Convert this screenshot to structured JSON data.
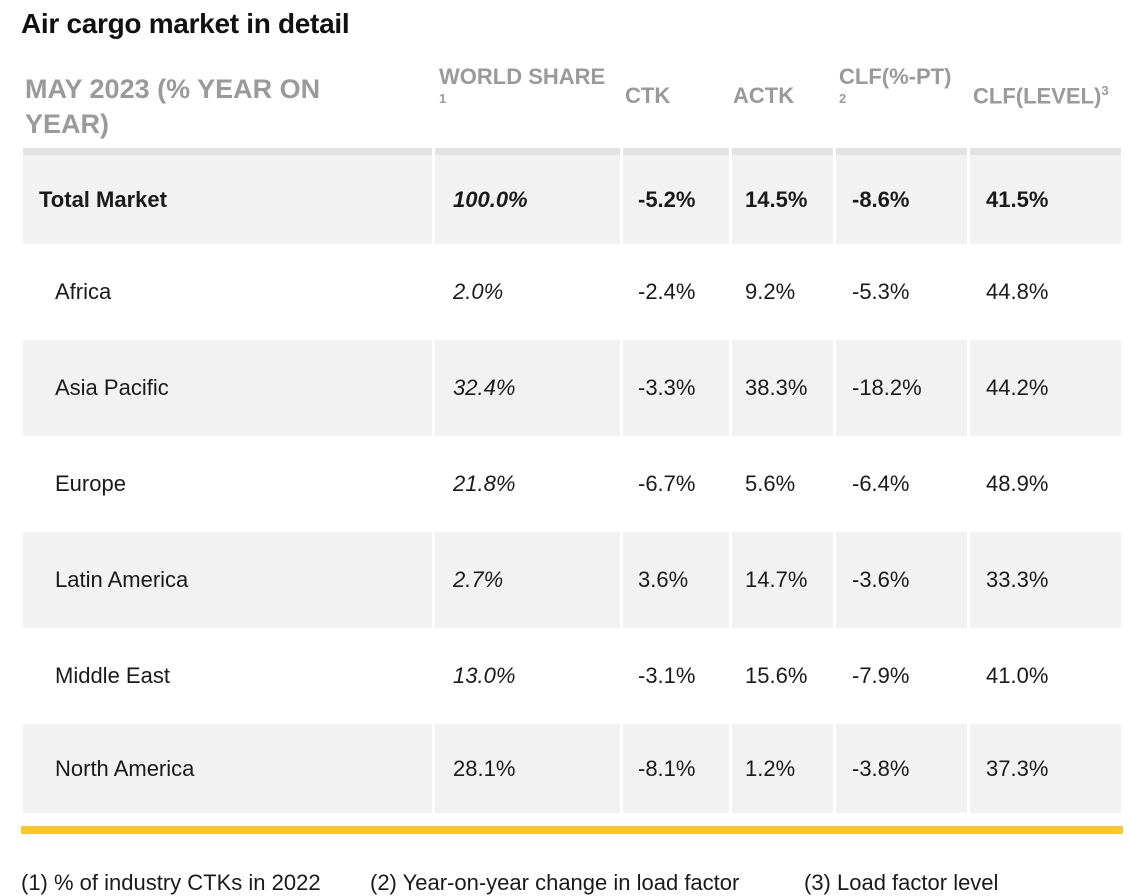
{
  "title": "Air cargo market in detail",
  "header": {
    "main": "MAY 2023 (% YEAR ON YEAR)",
    "world_share": "WORLD SHARE",
    "world_share_note": "1",
    "ctk": "CTK",
    "actk": "ACTK",
    "clf_pt": "CLF(%-PT)",
    "clf_pt_note": "2",
    "clf_level": "CLF(LEVEL)",
    "clf_level_note": "3"
  },
  "rows": [
    {
      "region": "Total Market",
      "world_share": "100.0%",
      "ctk": "-5.2%",
      "actk": "14.5%",
      "clf_pt": "-8.6%",
      "clf_level": "41.5%"
    },
    {
      "region": "Africa",
      "world_share": "2.0%",
      "ctk": "-2.4%",
      "actk": "9.2%",
      "clf_pt": "-5.3%",
      "clf_level": "44.8%"
    },
    {
      "region": "Asia Pacific",
      "world_share": "32.4%",
      "ctk": "-3.3%",
      "actk": "38.3%",
      "clf_pt": "-18.2%",
      "clf_level": "44.2%"
    },
    {
      "region": "Europe",
      "world_share": "21.8%",
      "ctk": "-6.7%",
      "actk": "5.6%",
      "clf_pt": "-6.4%",
      "clf_level": "48.9%"
    },
    {
      "region": "Latin America",
      "world_share": "2.7%",
      "ctk": "3.6%",
      "actk": "14.7%",
      "clf_pt": "-3.6%",
      "clf_level": "33.3%"
    },
    {
      "region": "Middle East",
      "world_share": "13.0%",
      "ctk": "-3.1%",
      "actk": "15.6%",
      "clf_pt": "-7.9%",
      "clf_level": "41.0%"
    },
    {
      "region": "North America",
      "world_share": "28.1%",
      "ctk": "-8.1%",
      "actk": "1.2%",
      "clf_pt": "-3.8%",
      "clf_level": "37.3%"
    }
  ],
  "footnotes": [
    "(1) % of industry CTKs in 2022",
    "(2) Year-on-year change in load factor",
    "(3) Load factor level"
  ],
  "colors": {
    "accent_bar": "#fcc72b",
    "row_shade": "#f2f2f2",
    "header_text": "#9a9a9a"
  }
}
